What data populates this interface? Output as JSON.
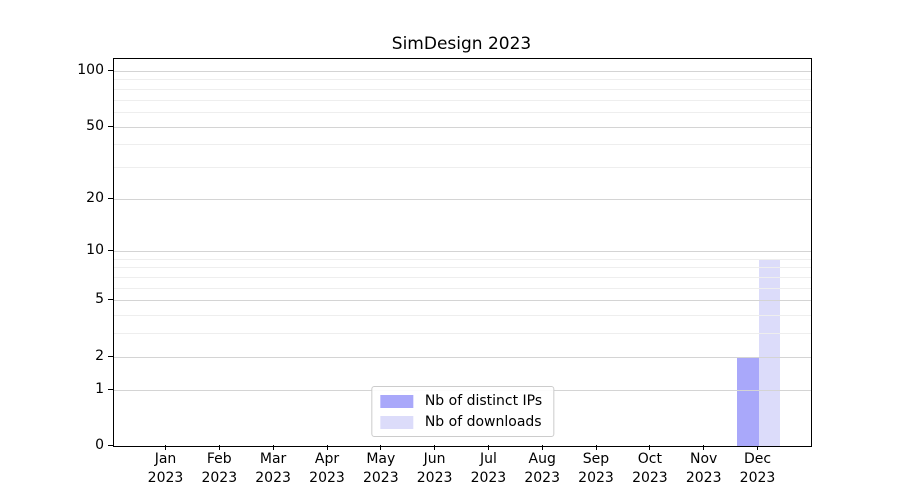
{
  "chart_data": {
    "type": "bar",
    "title": "SimDesign 2023",
    "xlabel": "",
    "ylabel": "",
    "categories": [
      "Jan 2023",
      "Feb 2023",
      "Mar 2023",
      "Apr 2023",
      "May 2023",
      "Jun 2023",
      "Jul 2023",
      "Aug 2023",
      "Sep 2023",
      "Oct 2023",
      "Nov 2023",
      "Dec 2023"
    ],
    "series": [
      {
        "name": "Nb of distinct IPs",
        "color": "#a9a8fa",
        "values": [
          0,
          0,
          0,
          0,
          0,
          0,
          0,
          0,
          0,
          0,
          0,
          2
        ]
      },
      {
        "name": "Nb of downloads",
        "color": "#dcdcfa",
        "values": [
          0,
          0,
          0,
          0,
          0,
          0,
          0,
          0,
          0,
          0,
          0,
          9
        ]
      }
    ],
    "y_scale": "log1p",
    "y_ticks": [
      0,
      1,
      2,
      5,
      10,
      20,
      50,
      100
    ],
    "y_minor_gridlines": [
      3,
      4,
      6,
      7,
      8,
      9,
      30,
      40,
      60,
      70,
      80,
      90
    ],
    "y_axis_max": 116,
    "grid": true,
    "legend_position": "lower center",
    "colors": {
      "major_grid": "#d4d4d4",
      "minor_grid": "#eeeeee",
      "axis": "#000000",
      "background": "#ffffff"
    }
  }
}
